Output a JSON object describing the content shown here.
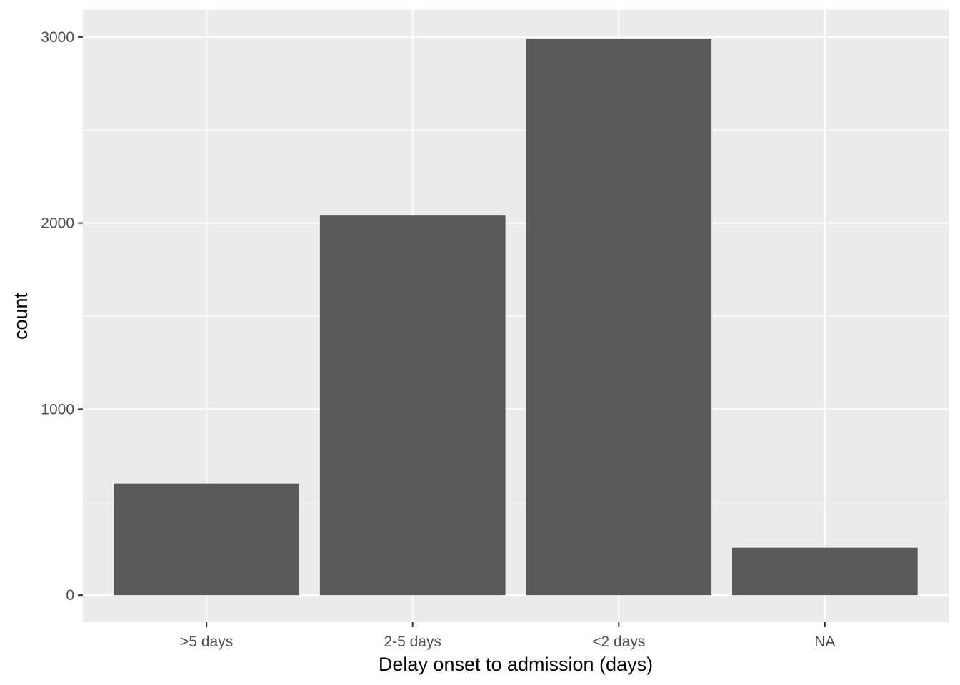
{
  "chart_data": {
    "type": "bar",
    "categories": [
      ">5 days",
      "2-5 days",
      "<2 days",
      "NA"
    ],
    "values": [
      600,
      2040,
      2990,
      255
    ],
    "xlabel": "Delay onset to admission (days)",
    "ylabel": "count",
    "ylim": [
      -145,
      3145
    ],
    "yticks": [
      0,
      1000,
      2000,
      3000
    ],
    "yticks_minor": [
      500,
      1500,
      2500
    ],
    "grid": true,
    "legend": "none",
    "colors": {
      "bar": "#595959",
      "panel_background": "#ebebeb",
      "grid": "#ffffff",
      "tick_text": "#4d4d4d",
      "axis_ticks": "#333333"
    }
  }
}
